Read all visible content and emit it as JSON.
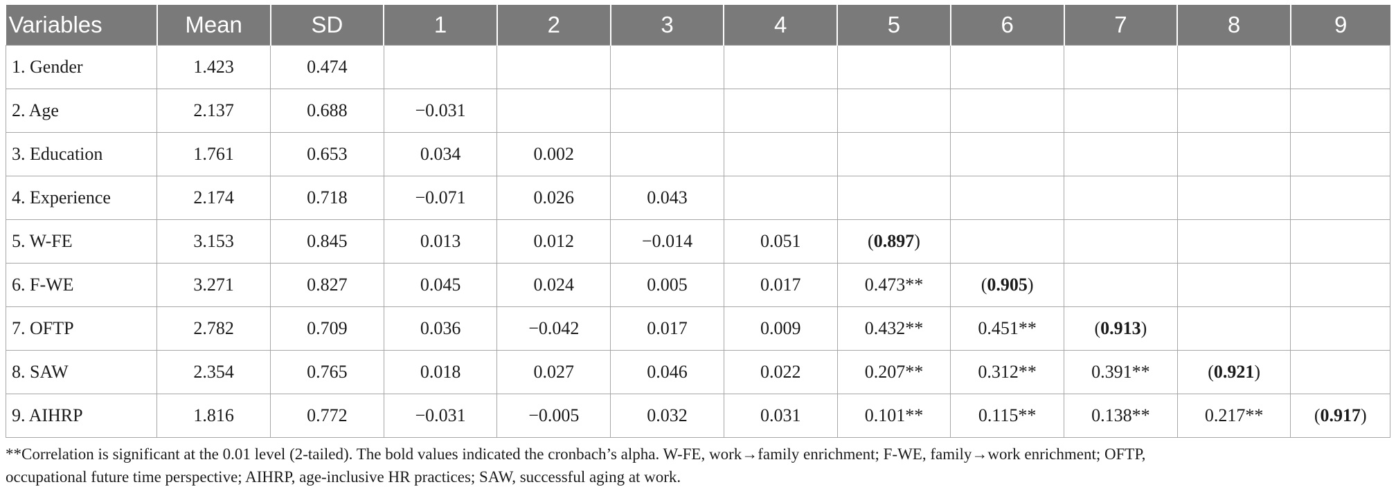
{
  "table": {
    "headers": [
      "Variables",
      "Mean",
      "SD",
      "1",
      "2",
      "3",
      "4",
      "5",
      "6",
      "7",
      "8",
      "9"
    ],
    "rows": [
      {
        "variable": "1. Gender",
        "mean": "1.423",
        "sd": "0.474",
        "cells": [
          "",
          "",
          "",
          "",
          "",
          "",
          "",
          "",
          ""
        ]
      },
      {
        "variable": "2. Age",
        "mean": "2.137",
        "sd": "0.688",
        "cells": [
          "−0.031",
          "",
          "",
          "",
          "",
          "",
          "",
          "",
          ""
        ]
      },
      {
        "variable": "3. Education",
        "mean": "1.761",
        "sd": "0.653",
        "cells": [
          "0.034",
          "0.002",
          "",
          "",
          "",
          "",
          "",
          "",
          ""
        ]
      },
      {
        "variable": "4. Experience",
        "mean": "2.174",
        "sd": "0.718",
        "cells": [
          "−0.071",
          "0.026",
          "0.043",
          "",
          "",
          "",
          "",
          "",
          ""
        ]
      },
      {
        "variable": "5. W-FE",
        "mean": "3.153",
        "sd": "0.845",
        "cells": [
          "0.013",
          "0.012",
          "−0.014",
          "0.051",
          "(0.897)",
          "",
          "",
          "",
          ""
        ]
      },
      {
        "variable": "6. F-WE",
        "mean": "3.271",
        "sd": "0.827",
        "cells": [
          "0.045",
          "0.024",
          "0.005",
          "0.017",
          "0.473**",
          "(0.905)",
          "",
          "",
          ""
        ]
      },
      {
        "variable": "7. OFTP",
        "mean": "2.782",
        "sd": "0.709",
        "cells": [
          "0.036",
          "−0.042",
          "0.017",
          "0.009",
          "0.432**",
          "0.451**",
          "(0.913)",
          "",
          ""
        ]
      },
      {
        "variable": "8. SAW",
        "mean": "2.354",
        "sd": "0.765",
        "cells": [
          "0.018",
          "0.027",
          "0.046",
          "0.022",
          "0.207**",
          "0.312**",
          "0.391**",
          "(0.921)",
          ""
        ]
      },
      {
        "variable": "9. AIHRP",
        "mean": "1.816",
        "sd": "0.772",
        "cells": [
          "−0.031",
          "−0.005",
          "0.032",
          "0.031",
          "0.101**",
          "0.115**",
          "0.138**",
          "0.217**",
          "(0.917)"
        ]
      }
    ]
  },
  "footnote": {
    "line1": "**Correlation is significant at the 0.01 level (2-tailed). The bold values indicated the cronbach’s alpha. W-FE, work→family enrichment; F-WE, family→work enrichment; OFTP,",
    "line2": "occupational future time perspective; AIHRP, age-inclusive HR practices; SAW, successful aging at work."
  }
}
